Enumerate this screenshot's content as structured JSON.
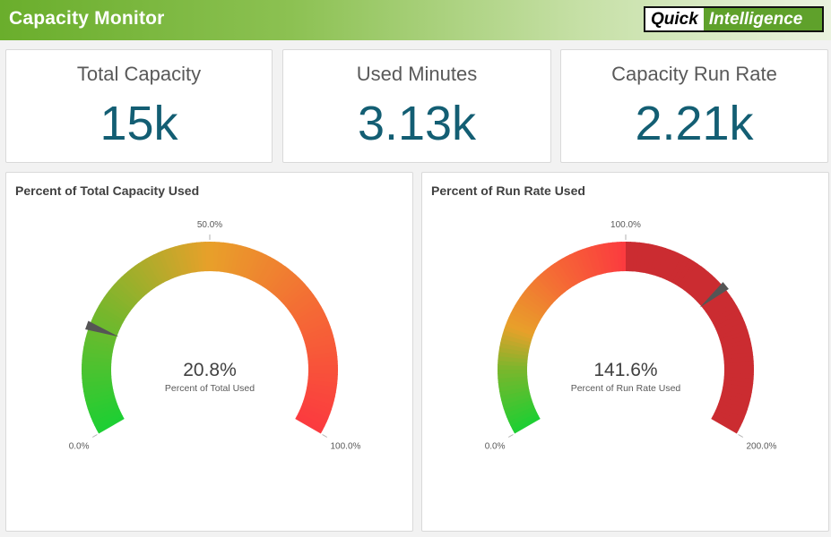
{
  "header": {
    "title": "Capacity Monitor",
    "logo_left": "Quick",
    "logo_right": "Intelligence",
    "background_color": "#7bb83c"
  },
  "kpis": [
    {
      "label": "Total Capacity",
      "value": "15k"
    },
    {
      "label": "Used Minutes",
      "value": "3.13k"
    },
    {
      "label": "Capacity Run Rate",
      "value": "2.21k"
    }
  ],
  "chart_data": [
    {
      "type": "gauge",
      "title": "Percent of Total Capacity Used",
      "value": 20.8,
      "min": 0,
      "max": 100,
      "value_text": "20.8%",
      "value_caption": "Percent of Total Used",
      "tick_labels": {
        "min": "0.0%",
        "mid": "50.0%",
        "max": "100.0%"
      },
      "gradient_stops": [
        {
          "at": 0.0,
          "color": "#1ccf33"
        },
        {
          "at": 0.25,
          "color": "#7ab62c"
        },
        {
          "at": 0.5,
          "color": "#e8a02a"
        },
        {
          "at": 0.75,
          "color": "#f56935"
        },
        {
          "at": 1.0,
          "color": "#fb3a3f"
        }
      ],
      "bands": []
    },
    {
      "type": "gauge",
      "title": "Percent of Run Rate Used",
      "value": 141.6,
      "min": 0,
      "max": 200,
      "value_text": "141.6%",
      "value_caption": "Percent of Run Rate Used",
      "tick_labels": {
        "min": "0.0%",
        "mid": "100.0%",
        "max": "200.0%"
      },
      "gradient_stops": [
        {
          "at": 0.0,
          "color": "#1ccf33"
        },
        {
          "at": 0.25,
          "color": "#7ab62c"
        },
        {
          "at": 0.42,
          "color": "#e8a02a"
        },
        {
          "at": 0.7,
          "color": "#f56935"
        },
        {
          "at": 1.0,
          "color": "#fb3a3f"
        }
      ],
      "bands": [
        {
          "from": 100,
          "to": 200,
          "color": "#cb2c31"
        }
      ]
    }
  ]
}
